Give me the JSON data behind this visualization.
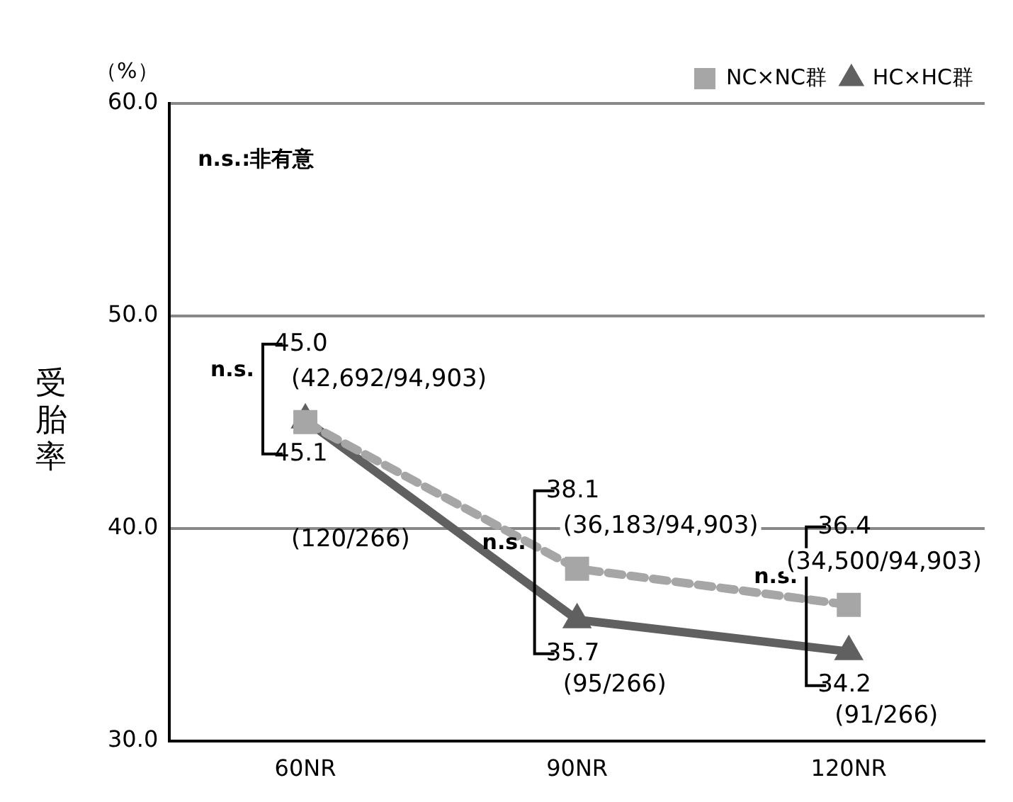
{
  "chart_data": {
    "type": "line",
    "ylabel": "受胎率",
    "categories": [
      "60NR",
      "90NR",
      "120NR"
    ],
    "series": [
      {
        "name": "NC×NC群",
        "color": "#a6a6a6",
        "values": [
          45.0,
          38.1,
          36.4
        ],
        "value_labels": [
          "45.0",
          "38.1",
          "36.4"
        ],
        "marker": "square",
        "line_style": "dashed"
      },
      {
        "name": "HC×HC群",
        "color": "#606060",
        "values": [
          45.1,
          35.7,
          34.2
        ],
        "value_labels": [
          "45.1",
          "35.7",
          "34.2"
        ],
        "marker": "triangle",
        "line_style": "solid"
      }
    ],
    "ylim": [
      30,
      60
    ],
    "yticks": [
      {
        "value": 30,
        "label": "30.0"
      },
      {
        "value": 40,
        "label": "40.0"
      },
      {
        "value": 50,
        "label": "50.0"
      },
      {
        "value": 60,
        "label": "60.0"
      }
    ],
    "grid": "y",
    "legend": "top right",
    "annotations": [
      "（%）",
      "n.s.:非有意",
      "n.s.",
      "n.s.",
      "n.s.",
      "(42,692/94,903)",
      "(120/266)",
      "(36,183/94,903)",
      "(95/266)",
      "(34,500/94,903)",
      "(91/266)"
    ]
  }
}
